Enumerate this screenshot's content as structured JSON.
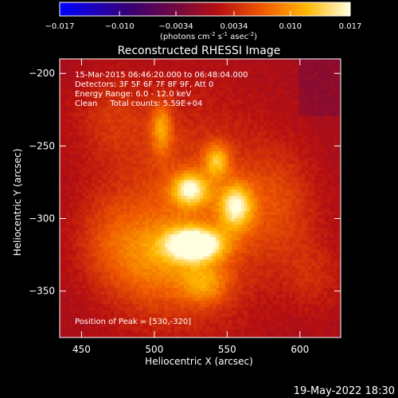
{
  "chart_data": {
    "type": "heatmap",
    "title": "Reconstructed RHESSI Image",
    "xlabel": "Heliocentric X (arcsec)",
    "ylabel": "Heliocentric Y (arcsec)",
    "xlim": [
      435,
      628
    ],
    "ylim": [
      -382,
      -190
    ],
    "x_ticks": [
      450,
      500,
      550,
      600
    ],
    "y_ticks": [
      -200,
      -250,
      -300,
      -350
    ],
    "colorbar": {
      "ticks": [
        "-0.017",
        "-0.010",
        "-0.0034",
        "0.0034",
        "0.010",
        "0.017"
      ],
      "unit_text": "(photons cm",
      "unit_exp1": "-2",
      "unit_mid": " s",
      "unit_exp2": "-1",
      "unit_end": " asec",
      "unit_exp3": "-2",
      "unit_close": ")",
      "range": [
        -0.017,
        0.017
      ]
    },
    "annotations": [
      "15-Mar-2015 06:46:20.000 to 06:48:04.000",
      "Detectors: 3F 5F 6F 7F 8F 9F, Att 0",
      "Energy Range: 6.0 - 12.0 keV",
      "Clean     Total counts: 5.59E+04"
    ],
    "peak_label": "Position of Peak = [530,-320]",
    "sources": [
      {
        "x": 528,
        "y": -318,
        "sx": 14,
        "sy": 8,
        "amp": 0.017
      },
      {
        "x": 525,
        "y": -280,
        "sx": 9,
        "sy": 8,
        "amp": 0.012
      },
      {
        "x": 556,
        "y": -292,
        "sx": 8,
        "sy": 11,
        "amp": 0.012
      },
      {
        "x": 543,
        "y": -260,
        "sx": 6,
        "sy": 8,
        "amp": 0.009
      },
      {
        "x": 505,
        "y": -238,
        "sx": 5,
        "sy": 12,
        "amp": 0.0075
      },
      {
        "x": 522,
        "y": -300,
        "sx": 40,
        "sy": 55,
        "amp": 0.0055
      },
      {
        "x": 535,
        "y": -345,
        "sx": 12,
        "sy": 10,
        "amp": 0.006
      },
      {
        "x": 500,
        "y": -330,
        "sx": 22,
        "sy": 22,
        "amp": 0.0045
      },
      {
        "x": 470,
        "y": -315,
        "sx": 18,
        "sy": 22,
        "amp": 0.003
      },
      {
        "x": 585,
        "y": -290,
        "sx": 20,
        "sy": 28,
        "amp": 0.0038
      },
      {
        "x": 610,
        "y": -340,
        "sx": 15,
        "sy": 18,
        "amp": 0.0025
      },
      {
        "x": 470,
        "y": -230,
        "sx": 20,
        "sy": 20,
        "amp": 0.0028
      }
    ]
  },
  "footer_date": "19-May-2022 18:30"
}
